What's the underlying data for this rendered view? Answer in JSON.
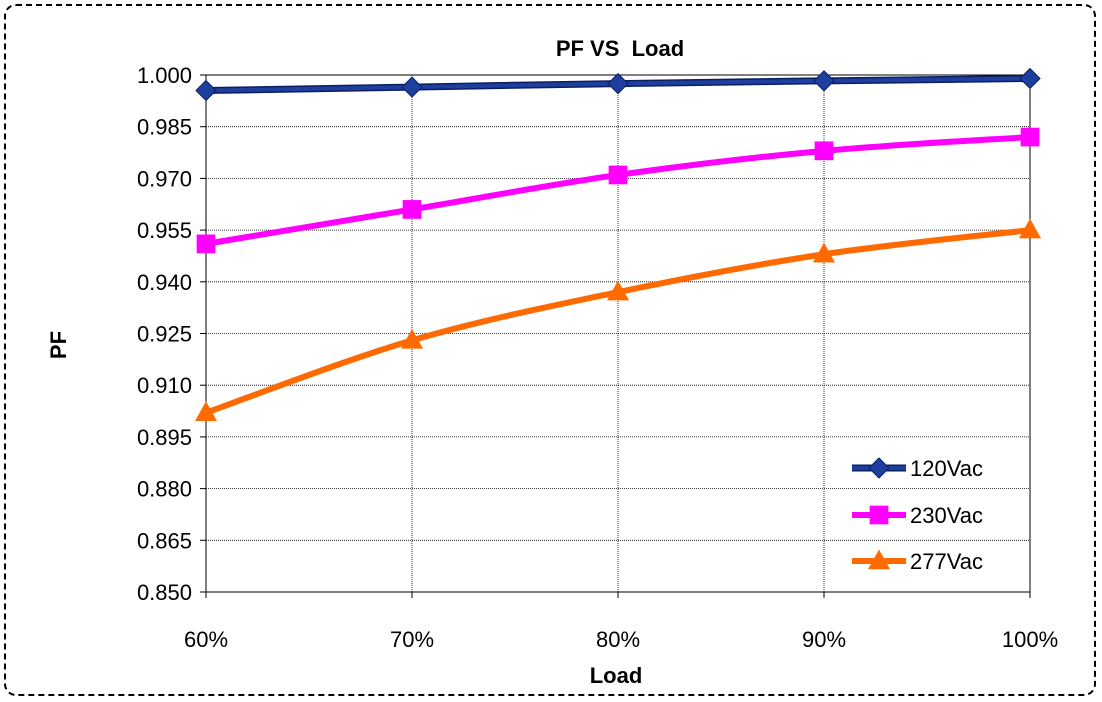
{
  "chart_data": {
    "type": "line",
    "title": "PF VS  Load",
    "xlabel": "Load",
    "ylabel": "PF",
    "categories": [
      "60%",
      "70%",
      "80%",
      "90%",
      "100%"
    ],
    "y_ticks": [
      "0.850",
      "0.865",
      "0.880",
      "0.895",
      "0.910",
      "0.925",
      "0.940",
      "0.955",
      "0.970",
      "0.985",
      "1.000"
    ],
    "ylim": [
      0.85,
      1.0
    ],
    "grid": true,
    "legend_position": "bottom-right",
    "series": [
      {
        "name": "120Vac",
        "values": [
          0.9955,
          0.9965,
          0.9975,
          0.9983,
          0.999
        ],
        "color": "#1F3FA0",
        "marker": "diamond"
      },
      {
        "name": "230Vac",
        "values": [
          0.951,
          0.961,
          0.971,
          0.978,
          0.982
        ],
        "color": "#FF00FF",
        "marker": "square"
      },
      {
        "name": "277Vac",
        "values": [
          0.902,
          0.923,
          0.937,
          0.948,
          0.955
        ],
        "color": "#FF6A00",
        "marker": "triangle"
      }
    ]
  }
}
